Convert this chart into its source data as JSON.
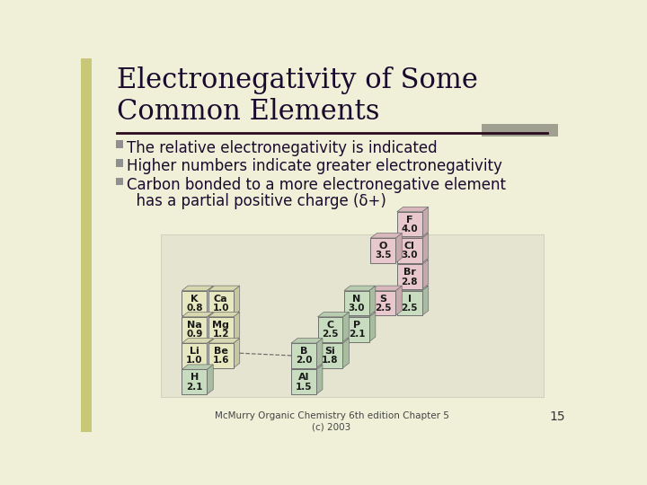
{
  "title_line1": "Electronegativity of Some",
  "title_line2": "Common Elements",
  "bg_color": "#f0f0d8",
  "title_color": "#1a0a2e",
  "text_color": "#1a0a2e",
  "bullet_color": "#909090",
  "divider_color": "#2a0a1e",
  "grey_rect_color": "#a0a090",
  "left_bar_color": "#c8c878",
  "footer": "McMurry Organic Chemistry 6th edition Chapter 5\n(c) 2003",
  "page_number": "15",
  "bullet_points": [
    "The relative electronegativity is indicated",
    "Higher numbers indicate greater electronegativity",
    "Carbon bonded to a more electronegative element"
  ],
  "bullet_point4": "  has a partial positive charge (δ+)",
  "table_bg": "#e8e8d8",
  "elements": [
    {
      "symbol": "H",
      "value": "2.1",
      "color": "#c8dcc0",
      "side_color": "#a8bcA0",
      "top_color": "#b8ccb0"
    },
    {
      "symbol": "Li",
      "value": "1.0",
      "color": "#e8e8c0",
      "side_color": "#c8c8a0",
      "top_color": "#d8d8b0"
    },
    {
      "symbol": "Be",
      "value": "1.6",
      "color": "#e8e8c0",
      "side_color": "#c8c8a0",
      "top_color": "#d8d8b0"
    },
    {
      "symbol": "Na",
      "value": "0.9",
      "color": "#e8e8c0",
      "side_color": "#c8c8a0",
      "top_color": "#d8d8b0"
    },
    {
      "symbol": "Mg",
      "value": "1.2",
      "color": "#e8e8c0",
      "side_color": "#c8c8a0",
      "top_color": "#d8d8b0"
    },
    {
      "symbol": "K",
      "value": "0.8",
      "color": "#e8e8c0",
      "side_color": "#c8c8a0",
      "top_color": "#d8d8b0"
    },
    {
      "symbol": "Ca",
      "value": "1.0",
      "color": "#e8e8c0",
      "side_color": "#c8c8a0",
      "top_color": "#d8d8b0"
    },
    {
      "symbol": "B",
      "value": "2.0",
      "color": "#c8dcc0",
      "side_color": "#a8bca0",
      "top_color": "#b8ccb0"
    },
    {
      "symbol": "Al",
      "value": "1.5",
      "color": "#c8dcc0",
      "side_color": "#a8bca0",
      "top_color": "#b8ccb0"
    },
    {
      "symbol": "C",
      "value": "2.5",
      "color": "#c8dcc0",
      "side_color": "#a8bca0",
      "top_color": "#b8ccb0"
    },
    {
      "symbol": "Si",
      "value": "1.8",
      "color": "#c8dcc0",
      "side_color": "#a8bca0",
      "top_color": "#b8ccb0"
    },
    {
      "symbol": "N",
      "value": "3.0",
      "color": "#c8dcc0",
      "side_color": "#a8bca0",
      "top_color": "#b8ccb0"
    },
    {
      "symbol": "P",
      "value": "2.1",
      "color": "#c8dcc0",
      "side_color": "#a8bca0",
      "top_color": "#b8ccb0"
    },
    {
      "symbol": "O",
      "value": "3.5",
      "color": "#e8c8cc",
      "side_color": "#c8a8ac",
      "top_color": "#d8b8bc"
    },
    {
      "symbol": "S",
      "value": "2.5",
      "color": "#e8c8cc",
      "side_color": "#c8a8ac",
      "top_color": "#d8b8bc"
    },
    {
      "symbol": "F",
      "value": "4.0",
      "color": "#e8c8cc",
      "side_color": "#c8a8ac",
      "top_color": "#d8b8bc"
    },
    {
      "symbol": "Cl",
      "value": "3.0",
      "color": "#e8c8cc",
      "side_color": "#c8a8ac",
      "top_color": "#d8b8bc"
    },
    {
      "symbol": "Br",
      "value": "2.8",
      "color": "#e8c8cc",
      "side_color": "#c8a8ac",
      "top_color": "#d8b8bc"
    },
    {
      "symbol": "I",
      "value": "2.5",
      "color": "#c8dcc0",
      "side_color": "#a8bca0",
      "top_color": "#b8ccb0"
    }
  ]
}
